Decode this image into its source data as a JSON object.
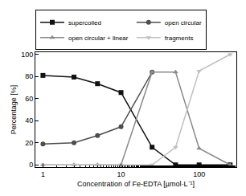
{
  "chart_data": {
    "type": "line",
    "x_label": "Concentration of Fe-EDTA [µmol·L⁻¹]",
    "y_label": "Percentage [%]",
    "x": [
      1,
      2.5,
      5,
      10,
      25,
      50,
      100,
      250
    ],
    "series": [
      {
        "name": "supercoiled",
        "color": "#111111",
        "marker": "square",
        "values": [
          81,
          79.5,
          73.5,
          65.5,
          16,
          0,
          0,
          0
        ]
      },
      {
        "name": "open circular",
        "color": "#4d4d4d",
        "marker": "circle",
        "values": [
          19,
          20,
          26.5,
          34.5,
          84,
          null,
          null,
          null
        ]
      },
      {
        "name": "open circular + linear",
        "color": "#8a8a8a",
        "marker": "triangle-up",
        "values": [
          0,
          0,
          0,
          0,
          84,
          84,
          15,
          0
        ]
      },
      {
        "name": "fragments",
        "color": "#c0c0c0",
        "marker": "triangle-down",
        "values": [
          0,
          0,
          0,
          0,
          0,
          16,
          85,
          100
        ]
      }
    ],
    "log": "x",
    "xlim": [
      0.8,
      300
    ],
    "xticks": [
      1,
      10,
      100
    ],
    "ylim": [
      -2,
      102
    ],
    "yticks": [
      0,
      20,
      40,
      60,
      80,
      100
    ],
    "grid": false,
    "legend": "top"
  }
}
